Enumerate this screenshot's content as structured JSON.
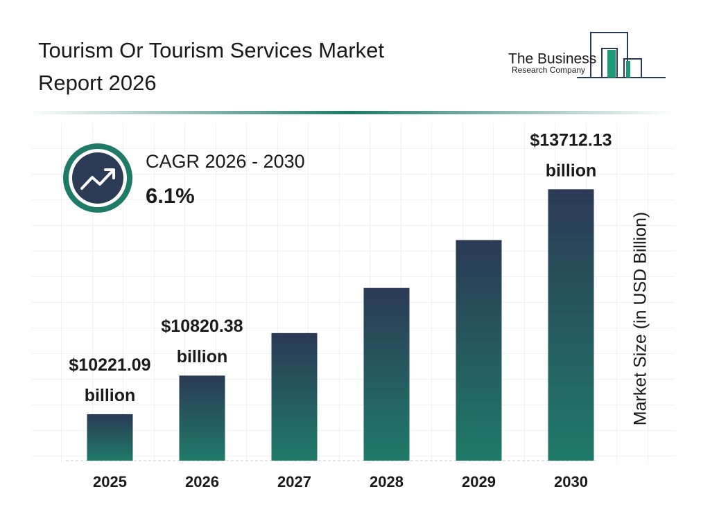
{
  "chart_data": {
    "type": "bar",
    "title": "Tourism Or Tourism Services Market Report 2026",
    "logo": {
      "line1": "The Business",
      "line2": "Research Company"
    },
    "cagr_label": "CAGR 2026 - 2030",
    "cagr_value": "6.1%",
    "y_label": "Market Size (in USD Billion)",
    "categories": [
      "2025",
      "2026",
      "2027",
      "2028",
      "2029",
      "2030"
    ],
    "values": [
      10221.09,
      10820.38,
      11480.42,
      12180.73,
      12923.75,
      13712.13
    ],
    "value_labels": [
      "$10221.09 billion",
      "$10820.38 billion",
      null,
      null,
      null,
      "$13712.13 billion"
    ],
    "colors": {
      "top": "#2b3a55",
      "bottom": "#1f7a68"
    },
    "ylim": [
      9500,
      14500
    ]
  }
}
